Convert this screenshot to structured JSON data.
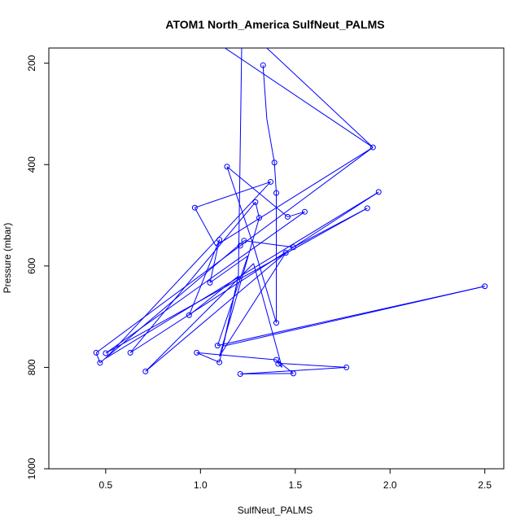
{
  "chart_data": {
    "type": "line",
    "title": "ATOM1 North_America SulfNeut_PALMS",
    "xlabel": "SulfNeut_PALMS",
    "ylabel": "Pressure (mbar)",
    "xlim": [
      0.2,
      2.6
    ],
    "ylim": [
      1000,
      170
    ],
    "y_reversed": true,
    "xticks": [
      0.5,
      1.0,
      1.5,
      2.0,
      2.5
    ],
    "xtick_labels": [
      "0.5",
      "1.0",
      "1.5",
      "2.0",
      "2.5"
    ],
    "yticks": [
      200,
      400,
      600,
      800,
      1000
    ],
    "ytick_labels": [
      "200",
      "400",
      "600",
      "800",
      "1000"
    ],
    "grid": false,
    "series": [
      {
        "color": "#0000ff",
        "marker": "open-circle",
        "points": [
          [
            1.33,
            204
          ],
          [
            1.35,
            310
          ],
          [
            1.39,
            396
          ],
          [
            1.4,
            456
          ],
          [
            1.4,
            712
          ],
          [
            1.28,
            560
          ],
          [
            1.14,
            404
          ],
          [
            1.46,
            503
          ],
          [
            1.55,
            493
          ],
          [
            0.5,
            772
          ],
          [
            1.88,
            486
          ],
          [
            1.49,
            563
          ],
          [
            1.23,
            550
          ],
          [
            0.47,
            791
          ],
          [
            0.45,
            771
          ],
          [
            1.91,
            366
          ],
          [
            1.08,
            560
          ],
          [
            0.97,
            485
          ],
          [
            1.37,
            434
          ],
          [
            0.5,
            782
          ],
          [
            1.94,
            454
          ],
          [
            0.63,
            771
          ],
          [
            1.29,
            474
          ],
          [
            1.31,
            505
          ],
          [
            1.1,
            778
          ],
          [
            1.45,
            574
          ],
          [
            0.71,
            808
          ],
          [
            1.28,
            595
          ],
          [
            1.43,
            800
          ],
          [
            1.4,
            788
          ],
          [
            1.42,
            792
          ],
          [
            1.77,
            800
          ],
          [
            1.21,
            813
          ],
          [
            1.49,
            812
          ],
          [
            1.4,
            785
          ],
          [
            0.98,
            771
          ],
          [
            1.1,
            790
          ],
          [
            1.2,
            620
          ],
          [
            0.94,
            697
          ],
          [
            1.1,
            548
          ],
          [
            1.05,
            633
          ],
          [
            1.25,
            580
          ],
          [
            1.09,
            757
          ],
          [
            2.5,
            640
          ],
          [
            1.12,
            758
          ],
          [
            1.2,
            620
          ],
          [
            1.22,
            100
          ],
          [
            1.02,
            100
          ],
          [
            0.85,
            100
          ],
          [
            1.91,
            366
          ],
          [
            1.15,
            100
          ]
        ],
        "visible_markers": [
          [
            1.33,
            204
          ],
          [
            1.91,
            366
          ],
          [
            1.39,
            396
          ],
          [
            1.14,
            404
          ],
          [
            1.37,
            434
          ],
          [
            1.4,
            456
          ],
          [
            1.94,
            454
          ],
          [
            0.97,
            485
          ],
          [
            1.88,
            486
          ],
          [
            1.55,
            493
          ],
          [
            1.29,
            474
          ],
          [
            1.31,
            505
          ],
          [
            1.46,
            503
          ],
          [
            1.1,
            548
          ],
          [
            1.23,
            550
          ],
          [
            1.49,
            563
          ],
          [
            1.21,
            560
          ],
          [
            1.45,
            574
          ],
          [
            1.05,
            633
          ],
          [
            2.5,
            640
          ],
          [
            0.94,
            697
          ],
          [
            1.4,
            712
          ],
          [
            1.09,
            757
          ],
          [
            0.45,
            771
          ],
          [
            0.5,
            772
          ],
          [
            0.63,
            771
          ],
          [
            0.98,
            771
          ],
          [
            0.47,
            791
          ],
          [
            1.4,
            785
          ],
          [
            1.41,
            793
          ],
          [
            1.1,
            790
          ],
          [
            1.77,
            800
          ],
          [
            0.71,
            808
          ],
          [
            1.21,
            813
          ],
          [
            1.49,
            812
          ]
        ]
      }
    ]
  }
}
